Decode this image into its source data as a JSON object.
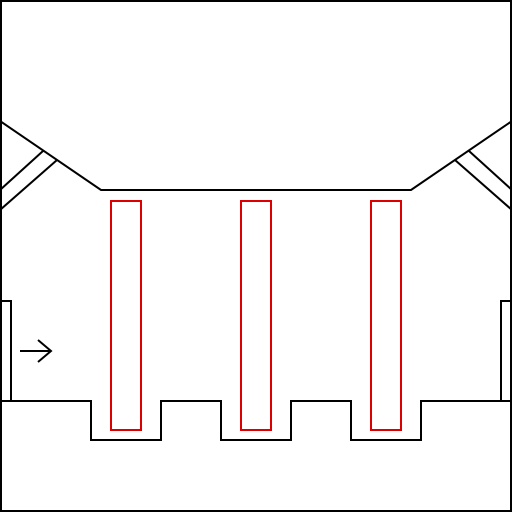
{
  "colors": {
    "background": "#ffffff",
    "wall": "#000000",
    "zone": "#dd0000",
    "arrow": "#000000"
  },
  "entrance_marker": {
    "icon": "arrow-right-icon",
    "direction": "right"
  },
  "zones": [
    {
      "name": "zone-left"
    },
    {
      "name": "zone-center"
    },
    {
      "name": "zone-right"
    }
  ]
}
